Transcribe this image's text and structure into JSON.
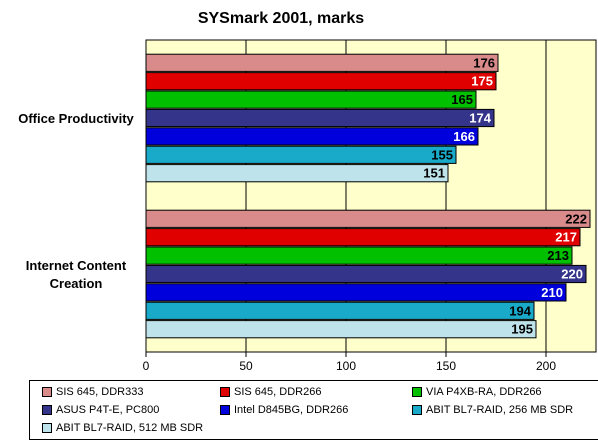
{
  "chart_data": {
    "type": "bar",
    "orientation": "horizontal",
    "title": "SYSmark 2001, marks",
    "xlabel": "",
    "ylabel": "",
    "xlim": [
      0,
      225
    ],
    "xticks": [
      0,
      50,
      100,
      150,
      200
    ],
    "grid": true,
    "legend_position": "bottom",
    "categories": [
      "Office Productivity",
      "Internet Content Creation"
    ],
    "series": [
      {
        "name": "SIS 645, DDR333",
        "color": "#d98a8a",
        "values": [
          176,
          222
        ]
      },
      {
        "name": "SIS 645, DDR266",
        "color": "#e00000",
        "values": [
          175,
          217
        ]
      },
      {
        "name": "VIA P4XB-RA, DDR266",
        "color": "#00c000",
        "values": [
          165,
          213
        ]
      },
      {
        "name": "ASUS P4T-E, PC800",
        "color": "#34348a",
        "values": [
          174,
          220
        ]
      },
      {
        "name": "Intel D845BG, DDR266",
        "color": "#0000dd",
        "values": [
          166,
          210
        ]
      },
      {
        "name": "ABIT BL7-RAID, 256 MB SDR",
        "color": "#19a9c9",
        "values": [
          155,
          194
        ]
      },
      {
        "name": "ABIT BL7-RAID, 512 MB SDR",
        "color": "#bfe3ea",
        "values": [
          151,
          195
        ]
      }
    ]
  },
  "colors": {
    "plot_background": "#ffffcc",
    "label_on_dark": "#ffffff",
    "label_on_light": "#000000"
  }
}
